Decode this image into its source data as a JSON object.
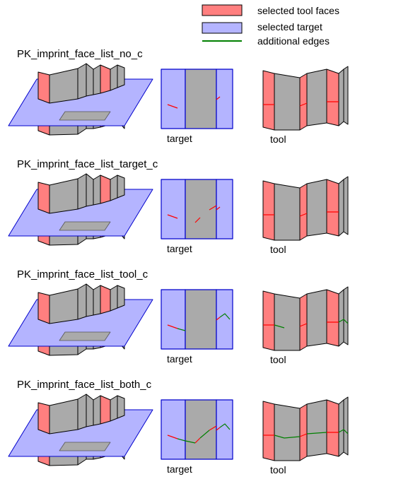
{
  "legend": {
    "tool_faces": {
      "label": "selected tool faces",
      "color": "#ff7f7f"
    },
    "target": {
      "label": "selected target",
      "color": "#b4b4ff"
    },
    "edges": {
      "label": "additional edges",
      "color": "#008000"
    }
  },
  "colors": {
    "gray_face": "#aaaaaa",
    "blue_edge": "#0000cc",
    "red_edge": "#ff0000",
    "green_edge": "#008000",
    "outline": "#000000"
  },
  "rows": [
    {
      "title": "PK_imprint_face_list_no_c",
      "target_label": "target",
      "tool_label": "tool",
      "mode": "none"
    },
    {
      "title": "PK_imprint_face_list_target_c",
      "target_label": "target",
      "tool_label": "tool",
      "mode": "target"
    },
    {
      "title": "PK_imprint_face_list_tool_c",
      "target_label": "target",
      "tool_label": "tool",
      "mode": "tool"
    },
    {
      "title": "PK_imprint_face_list_both_c",
      "target_label": "target",
      "tool_label": "tool",
      "mode": "both"
    }
  ]
}
